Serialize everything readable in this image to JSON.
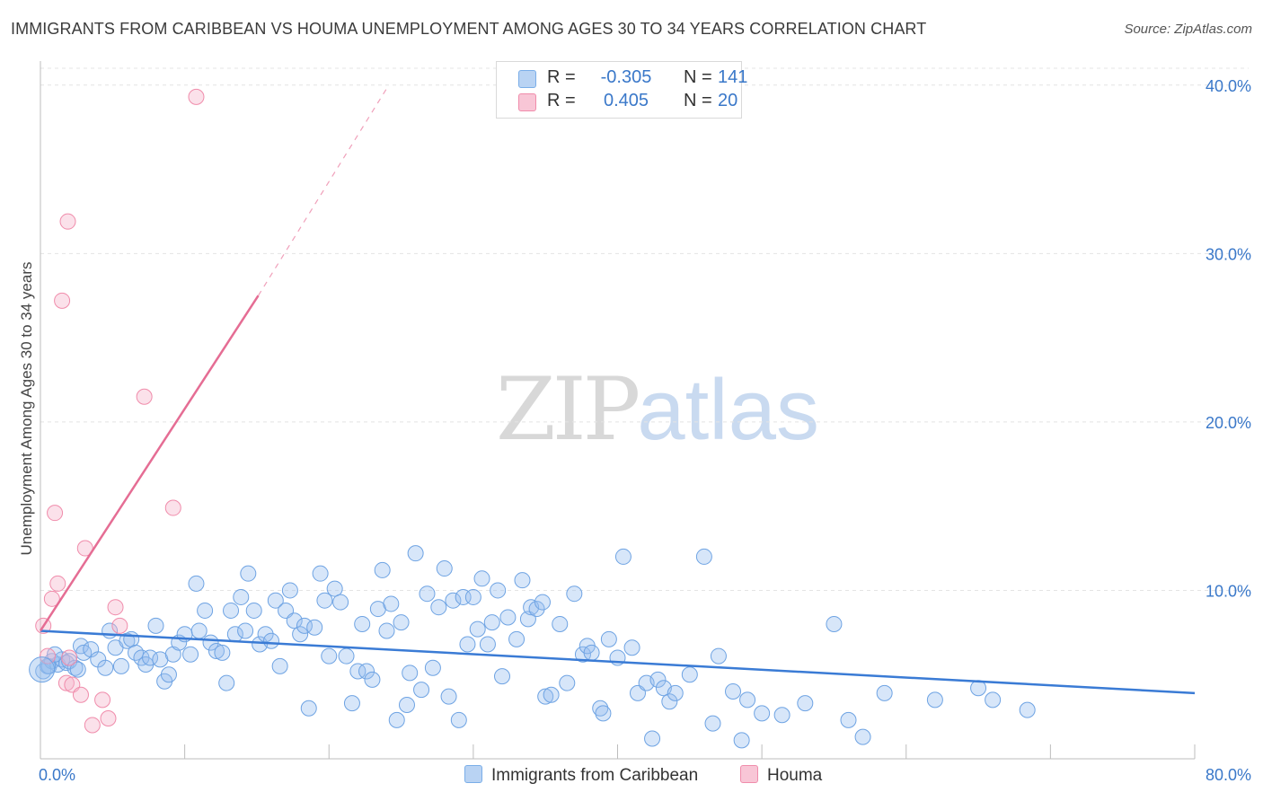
{
  "title": "IMMIGRANTS FROM CARIBBEAN VS HOUMA UNEMPLOYMENT AMONG AGES 30 TO 34 YEARS CORRELATION CHART",
  "source": "Source: ZipAtlas.com",
  "watermark": {
    "zip": "ZIP",
    "atlas": "atlas"
  },
  "legend": {
    "r_label": "R =",
    "n_label": "N =",
    "series": [
      {
        "name": "Immigrants from Caribbean",
        "r": "-0.305",
        "n": "141",
        "color": "#7aaee8",
        "fill": "#b9d3f3"
      },
      {
        "name": "Houma",
        "r": "0.405",
        "n": "20",
        "color": "#f08cab",
        "fill": "#f8c6d6"
      }
    ]
  },
  "chart_data": {
    "type": "scatter",
    "title": "IMMIGRANTS FROM CARIBBEAN VS HOUMA UNEMPLOYMENT AMONG AGES 30 TO 34 YEARS CORRELATION CHART",
    "xlabel": "",
    "ylabel": "Unemployment Among Ages 30 to 34 years",
    "xlim": [
      0,
      80
    ],
    "ylim": [
      0,
      41
    ],
    "x_tick_labels": [
      "0.0%",
      "80.0%"
    ],
    "y_ticks": [
      10,
      20,
      30,
      40
    ],
    "y_tick_labels": [
      "10.0%",
      "20.0%",
      "30.0%",
      "40.0%"
    ],
    "grid": true,
    "series": [
      {
        "name": "Immigrants from Caribbean",
        "color": "#3a7bd5",
        "trend": {
          "x0": 0,
          "y0": 7.6,
          "x1": 80,
          "y1": 3.9
        },
        "points": [
          [
            0.2,
            5.2
          ],
          [
            0.6,
            5.5
          ],
          [
            0.8,
            5.8
          ],
          [
            1.2,
            5.6
          ],
          [
            1.5,
            5.9
          ],
          [
            1.8,
            5.7
          ],
          [
            2.0,
            5.8
          ],
          [
            2.4,
            5.4
          ],
          [
            2.8,
            6.7
          ],
          [
            3.0,
            6.3
          ],
          [
            3.5,
            6.5
          ],
          [
            4.0,
            5.9
          ],
          [
            4.5,
            5.4
          ],
          [
            4.8,
            7.6
          ],
          [
            5.2,
            6.6
          ],
          [
            5.6,
            5.5
          ],
          [
            6.0,
            7.0
          ],
          [
            6.3,
            7.1
          ],
          [
            6.6,
            6.3
          ],
          [
            7.0,
            6.0
          ],
          [
            7.3,
            5.6
          ],
          [
            7.6,
            6.0
          ],
          [
            8.0,
            7.9
          ],
          [
            8.3,
            5.9
          ],
          [
            8.6,
            4.6
          ],
          [
            8.9,
            5.0
          ],
          [
            9.2,
            6.2
          ],
          [
            9.6,
            6.9
          ],
          [
            10.0,
            7.4
          ],
          [
            10.4,
            6.2
          ],
          [
            10.8,
            10.4
          ],
          [
            11.0,
            7.6
          ],
          [
            11.4,
            8.8
          ],
          [
            11.8,
            6.9
          ],
          [
            12.2,
            6.4
          ],
          [
            12.6,
            6.3
          ],
          [
            12.9,
            4.5
          ],
          [
            13.2,
            8.8
          ],
          [
            13.5,
            7.4
          ],
          [
            13.9,
            9.6
          ],
          [
            14.2,
            7.6
          ],
          [
            14.4,
            11.0
          ],
          [
            14.8,
            8.8
          ],
          [
            15.2,
            6.8
          ],
          [
            15.6,
            7.4
          ],
          [
            16.0,
            7.0
          ],
          [
            16.3,
            9.4
          ],
          [
            16.6,
            5.5
          ],
          [
            17.0,
            8.8
          ],
          [
            17.3,
            10.0
          ],
          [
            17.6,
            8.2
          ],
          [
            18.0,
            7.4
          ],
          [
            18.3,
            7.9
          ],
          [
            18.6,
            3.0
          ],
          [
            19.0,
            7.8
          ],
          [
            19.4,
            11.0
          ],
          [
            19.7,
            9.4
          ],
          [
            20.0,
            6.1
          ],
          [
            20.4,
            10.1
          ],
          [
            20.8,
            9.3
          ],
          [
            21.2,
            6.1
          ],
          [
            21.6,
            3.3
          ],
          [
            22.0,
            5.2
          ],
          [
            22.3,
            8.0
          ],
          [
            22.6,
            5.2
          ],
          [
            23.0,
            4.7
          ],
          [
            23.4,
            8.9
          ],
          [
            23.7,
            11.2
          ],
          [
            24.0,
            7.6
          ],
          [
            24.3,
            9.2
          ],
          [
            24.7,
            2.3
          ],
          [
            25.0,
            8.1
          ],
          [
            25.4,
            3.2
          ],
          [
            25.6,
            5.1
          ],
          [
            26.0,
            12.2
          ],
          [
            26.4,
            4.1
          ],
          [
            26.8,
            9.8
          ],
          [
            27.2,
            5.4
          ],
          [
            27.6,
            9.0
          ],
          [
            28.0,
            11.3
          ],
          [
            28.3,
            3.7
          ],
          [
            28.6,
            9.4
          ],
          [
            29.0,
            2.3
          ],
          [
            29.3,
            9.6
          ],
          [
            29.6,
            6.8
          ],
          [
            30.0,
            9.6
          ],
          [
            30.3,
            7.7
          ],
          [
            30.6,
            10.7
          ],
          [
            31.0,
            6.8
          ],
          [
            31.3,
            8.1
          ],
          [
            31.7,
            10.0
          ],
          [
            32.0,
            4.9
          ],
          [
            32.4,
            8.4
          ],
          [
            33.0,
            7.1
          ],
          [
            33.4,
            10.6
          ],
          [
            33.8,
            8.3
          ],
          [
            34.0,
            9.0
          ],
          [
            34.4,
            8.9
          ],
          [
            34.8,
            9.3
          ],
          [
            35.0,
            3.7
          ],
          [
            35.4,
            3.8
          ],
          [
            36.0,
            8.0
          ],
          [
            36.5,
            4.5
          ],
          [
            37.0,
            9.8
          ],
          [
            37.6,
            6.2
          ],
          [
            37.9,
            6.7
          ],
          [
            38.2,
            6.3
          ],
          [
            38.8,
            3.0
          ],
          [
            39.0,
            2.7
          ],
          [
            39.4,
            7.1
          ],
          [
            40.0,
            6.0
          ],
          [
            40.4,
            12.0
          ],
          [
            41.0,
            6.6
          ],
          [
            41.4,
            3.9
          ],
          [
            42.0,
            4.5
          ],
          [
            42.4,
            1.2
          ],
          [
            42.8,
            4.7
          ],
          [
            43.2,
            4.2
          ],
          [
            43.6,
            3.4
          ],
          [
            44.0,
            3.9
          ],
          [
            45.0,
            5.0
          ],
          [
            46.0,
            12.0
          ],
          [
            46.6,
            2.1
          ],
          [
            47.0,
            6.1
          ],
          [
            48.0,
            4.0
          ],
          [
            48.6,
            1.1
          ],
          [
            49.0,
            3.5
          ],
          [
            50.0,
            2.7
          ],
          [
            51.4,
            2.6
          ],
          [
            53.0,
            3.3
          ],
          [
            55.0,
            8.0
          ],
          [
            56.0,
            2.3
          ],
          [
            57.0,
            1.3
          ],
          [
            58.5,
            3.9
          ],
          [
            62.0,
            3.5
          ],
          [
            65.0,
            4.2
          ],
          [
            66.0,
            3.5
          ],
          [
            68.4,
            2.9
          ],
          [
            0.5,
            5.5
          ],
          [
            1.0,
            6.2
          ],
          [
            2.6,
            5.3
          ]
        ]
      },
      {
        "name": "Houma",
        "color": "#e8708f",
        "trend": {
          "x0": 0,
          "y0": 7.6,
          "x1": 15.1,
          "y1": 27.5,
          "dash_to_x": 24,
          "dash_to_y": 39.8
        },
        "points": [
          [
            0.2,
            7.9
          ],
          [
            0.5,
            6.1
          ],
          [
            0.8,
            9.5
          ],
          [
            1.0,
            14.6
          ],
          [
            1.2,
            10.4
          ],
          [
            1.5,
            27.2
          ],
          [
            1.8,
            4.5
          ],
          [
            1.9,
            31.9
          ],
          [
            2.0,
            6.0
          ],
          [
            2.2,
            4.4
          ],
          [
            2.8,
            3.8
          ],
          [
            3.1,
            12.5
          ],
          [
            3.6,
            2.0
          ],
          [
            4.3,
            3.5
          ],
          [
            4.7,
            2.4
          ],
          [
            5.2,
            9.0
          ],
          [
            5.5,
            7.9
          ],
          [
            7.2,
            21.5
          ],
          [
            9.2,
            14.9
          ],
          [
            10.8,
            39.3
          ]
        ]
      }
    ]
  }
}
